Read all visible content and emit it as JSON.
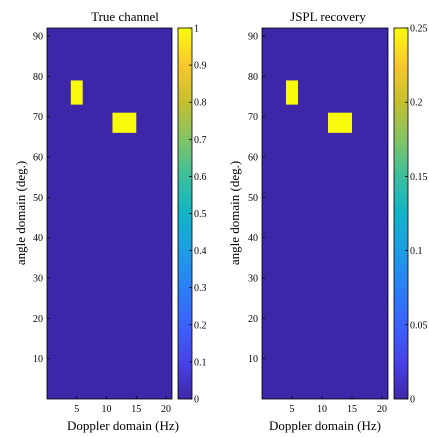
{
  "figure": {
    "colormap": "parula",
    "background_color": "#3e26a8",
    "patch_color": "#f9fb0e"
  },
  "chart_data": [
    {
      "type": "heatmap",
      "title": "True channel",
      "xlabel": "Doppler domain (Hz)",
      "ylabel": "angle domain (deg.)",
      "xlim": [
        0,
        21
      ],
      "ylim": [
        0,
        92
      ],
      "xticks": [
        5,
        10,
        15,
        20
      ],
      "yticks": [
        10,
        20,
        30,
        40,
        50,
        60,
        70,
        80,
        90
      ],
      "colorbar": {
        "range": [
          0,
          1
        ],
        "ticks": [
          0,
          0.1,
          0.2,
          0.3,
          0.4,
          0.5,
          0.6,
          0.7,
          0.8,
          0.9,
          1
        ],
        "tick_labels": [
          "0",
          "0.1",
          "0.2",
          "0.3",
          "0.4",
          "0.5",
          "0.6",
          "0.7",
          "0.8",
          "0.9",
          "1"
        ]
      },
      "background_value": 0,
      "regions": [
        {
          "x_range": [
            4,
            6
          ],
          "y_range": [
            73,
            79
          ],
          "value": 1
        },
        {
          "x_range": [
            11,
            15
          ],
          "y_range": [
            66,
            71
          ],
          "value": 1
        }
      ]
    },
    {
      "type": "heatmap",
      "title": "JSPL recovery",
      "xlabel": "Doppler domain (Hz)",
      "ylabel": "angle domain (deg.)",
      "xlim": [
        0,
        21
      ],
      "ylim": [
        0,
        92
      ],
      "xticks": [
        5,
        10,
        15,
        20
      ],
      "yticks": [
        10,
        20,
        30,
        40,
        50,
        60,
        70,
        80,
        90
      ],
      "colorbar": {
        "range": [
          0,
          0.25
        ],
        "ticks": [
          0,
          0.05,
          0.1,
          0.15,
          0.2,
          0.25
        ],
        "tick_labels": [
          "0",
          "0.05",
          "0.1",
          "0.15",
          "0.2",
          "0.25"
        ]
      },
      "background_value": 0,
      "regions": [
        {
          "x_range": [
            4,
            6
          ],
          "y_range": [
            73,
            79
          ],
          "value": 0.25
        },
        {
          "x_range": [
            11,
            15
          ],
          "y_range": [
            66,
            71
          ],
          "value": 0.25
        }
      ]
    }
  ]
}
